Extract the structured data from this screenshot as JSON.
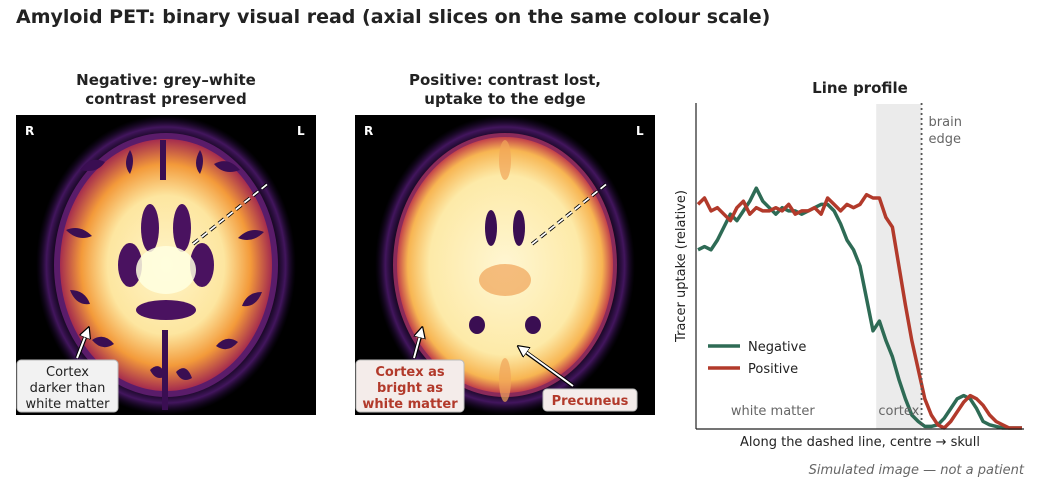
{
  "title": "Amyloid PET: binary visual read (axial slices on the same colour scale)",
  "panels": {
    "negative": {
      "title_line1": "Negative: grey–white",
      "title_line2": "contrast preserved",
      "orient_left": "R",
      "orient_right": "L",
      "annotation": [
        "Cortex",
        "darker than",
        "white matter"
      ]
    },
    "positive": {
      "title_line1": "Positive: contrast lost,",
      "title_line2": "uptake to the edge",
      "orient_left": "R",
      "orient_right": "L",
      "annotation": [
        "Cortex as",
        "bright as",
        "white matter"
      ],
      "annotation2": "Precuneus"
    }
  },
  "footer": "Simulated image — not a patient",
  "colors": {
    "negative": "#2e6b55",
    "positive": "#b23a2b",
    "band": "#ebebeb"
  },
  "chart_data": {
    "type": "line",
    "title": "Line profile",
    "xlabel": "Along the dashed line, centre → skull",
    "ylabel": "Tracer uptake (relative)",
    "legend_position": "lower-left",
    "grid": false,
    "xlim": [
      0,
      1
    ],
    "ylim": [
      0,
      1
    ],
    "regions": [
      {
        "label": "white matter",
        "x0": 0.0,
        "x1": 0.55
      },
      {
        "label": "cortex",
        "x0": 0.55,
        "x1": 0.69
      }
    ],
    "vline": {
      "x": 0.69,
      "label_line1": "brain",
      "label_line2": "edge"
    },
    "series": [
      {
        "name": "Negative",
        "x": [
          0,
          0.02,
          0.04,
          0.06,
          0.08,
          0.1,
          0.12,
          0.14,
          0.16,
          0.18,
          0.2,
          0.22,
          0.24,
          0.26,
          0.28,
          0.3,
          0.32,
          0.34,
          0.36,
          0.38,
          0.4,
          0.42,
          0.44,
          0.46,
          0.48,
          0.5,
          0.52,
          0.54,
          0.56,
          0.58,
          0.6,
          0.62,
          0.64,
          0.66,
          0.68,
          0.7,
          0.72,
          0.74,
          0.76,
          0.78,
          0.8,
          0.82,
          0.84,
          0.86,
          0.88,
          0.9,
          0.92,
          0.94,
          0.96,
          0.98,
          1.0
        ],
        "y": [
          0.55,
          0.56,
          0.55,
          0.58,
          0.62,
          0.66,
          0.64,
          0.67,
          0.7,
          0.74,
          0.7,
          0.68,
          0.66,
          0.68,
          0.67,
          0.67,
          0.66,
          0.67,
          0.68,
          0.69,
          0.69,
          0.67,
          0.63,
          0.58,
          0.55,
          0.5,
          0.4,
          0.3,
          0.33,
          0.27,
          0.22,
          0.15,
          0.09,
          0.04,
          0.02,
          0.005,
          0.005,
          0.01,
          0.03,
          0.06,
          0.09,
          0.1,
          0.09,
          0.06,
          0.02,
          0.01,
          0.005,
          0.0,
          0.0,
          0.0,
          0.0
        ]
      },
      {
        "name": "Positive",
        "x": [
          0,
          0.02,
          0.04,
          0.06,
          0.08,
          0.1,
          0.12,
          0.14,
          0.16,
          0.18,
          0.2,
          0.22,
          0.24,
          0.26,
          0.28,
          0.3,
          0.32,
          0.34,
          0.36,
          0.38,
          0.4,
          0.42,
          0.44,
          0.46,
          0.48,
          0.5,
          0.52,
          0.54,
          0.56,
          0.58,
          0.6,
          0.62,
          0.64,
          0.66,
          0.68,
          0.7,
          0.72,
          0.74,
          0.76,
          0.78,
          0.8,
          0.82,
          0.84,
          0.86,
          0.88,
          0.9,
          0.92,
          0.94,
          0.96,
          0.98,
          1.0
        ],
        "y": [
          0.69,
          0.71,
          0.67,
          0.68,
          0.66,
          0.64,
          0.68,
          0.7,
          0.66,
          0.68,
          0.67,
          0.67,
          0.68,
          0.67,
          0.69,
          0.66,
          0.67,
          0.67,
          0.68,
          0.66,
          0.71,
          0.69,
          0.67,
          0.69,
          0.68,
          0.69,
          0.72,
          0.71,
          0.71,
          0.65,
          0.62,
          0.5,
          0.38,
          0.27,
          0.18,
          0.09,
          0.04,
          0.01,
          0.0,
          0.02,
          0.05,
          0.08,
          0.1,
          0.09,
          0.07,
          0.04,
          0.02,
          0.01,
          0.0,
          0.0,
          0.0
        ]
      }
    ]
  }
}
